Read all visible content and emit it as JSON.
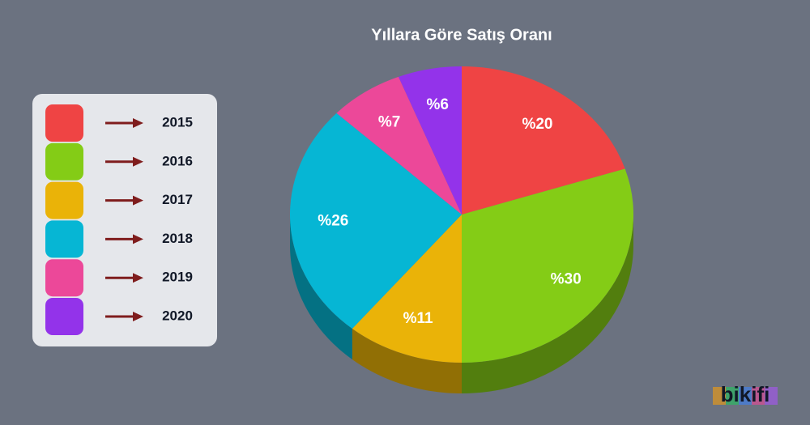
{
  "chart_data": {
    "type": "pie",
    "title": "Yıllara Göre Satış Oranı",
    "categories": [
      "2015",
      "2016",
      "2017",
      "2018",
      "2019",
      "2020"
    ],
    "values": [
      20,
      30,
      11,
      26,
      7,
      6
    ],
    "value_labels": [
      "%20",
      "%30",
      "%11",
      "%26",
      "%7",
      "%6"
    ],
    "colors": [
      "#ef4444",
      "#84cc16",
      "#eab308",
      "#06b6d4",
      "#ec4899",
      "#9333ea"
    ],
    "watermark": "bikifi"
  }
}
